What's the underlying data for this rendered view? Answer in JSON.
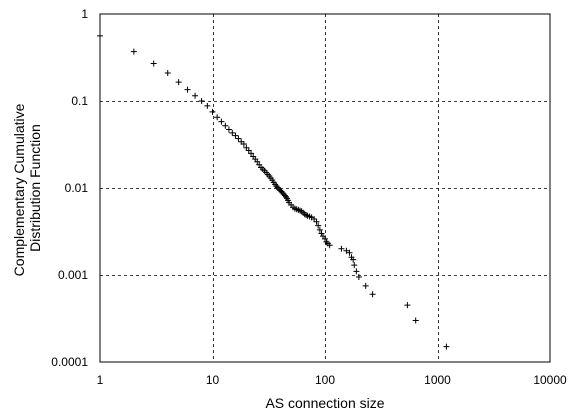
{
  "chart_data": {
    "type": "scatter",
    "title": "",
    "xlabel": "AS connection size",
    "ylabel_lines": [
      "Complementary Cumulative",
      "Distribution Function"
    ],
    "x_scale": "log",
    "y_scale": "log",
    "xlim": [
      1,
      10000
    ],
    "ylim": [
      0.0001,
      1
    ],
    "grid": true,
    "grid_style": "dashed",
    "legend": "none",
    "marker": "+",
    "marker_color": "#000000",
    "xticks": [
      {
        "value": 1,
        "label": "1"
      },
      {
        "value": 10,
        "label": "10"
      },
      {
        "value": 100,
        "label": "100"
      },
      {
        "value": 1000,
        "label": "1000"
      },
      {
        "value": 10000,
        "label": "10000"
      }
    ],
    "yticks": [
      {
        "value": 1,
        "label": "1"
      },
      {
        "value": 0.1,
        "label": "0.1"
      },
      {
        "value": 0.01,
        "label": "0.01"
      },
      {
        "value": 0.001,
        "label": "0.001"
      },
      {
        "value": 0.0001,
        "label": "0.0001"
      }
    ],
    "points": [
      [
        1,
        0.56
      ],
      [
        2,
        0.37
      ],
      [
        3,
        0.27
      ],
      [
        4,
        0.21
      ],
      [
        5,
        0.165
      ],
      [
        6,
        0.135
      ],
      [
        7,
        0.115
      ],
      [
        8,
        0.1
      ],
      [
        9,
        0.088
      ],
      [
        10,
        0.075
      ],
      [
        11,
        0.065
      ],
      [
        12,
        0.058
      ],
      [
        13,
        0.052
      ],
      [
        14,
        0.047
      ],
      [
        15,
        0.043
      ],
      [
        16,
        0.04
      ],
      [
        17,
        0.037
      ],
      [
        18,
        0.034
      ],
      [
        19,
        0.032
      ],
      [
        20,
        0.029
      ],
      [
        21,
        0.027
      ],
      [
        22,
        0.025
      ],
      [
        23,
        0.023
      ],
      [
        24,
        0.0215
      ],
      [
        25,
        0.02
      ],
      [
        26,
        0.0185
      ],
      [
        27,
        0.0172
      ],
      [
        28,
        0.0165
      ],
      [
        29,
        0.0158
      ],
      [
        30,
        0.015
      ],
      [
        31,
        0.0143
      ],
      [
        32,
        0.0137
      ],
      [
        33,
        0.013
      ],
      [
        34,
        0.0123
      ],
      [
        35,
        0.0116
      ],
      [
        36,
        0.011
      ],
      [
        37,
        0.0105
      ],
      [
        38,
        0.0101
      ],
      [
        39,
        0.0097
      ],
      [
        40,
        0.0094
      ],
      [
        41,
        0.0091
      ],
      [
        42,
        0.0088
      ],
      [
        43,
        0.0085
      ],
      [
        44,
        0.0082
      ],
      [
        45,
        0.0079
      ],
      [
        46,
        0.0076
      ],
      [
        47,
        0.0072
      ],
      [
        48,
        0.0068
      ],
      [
        50,
        0.0064
      ],
      [
        52,
        0.006
      ],
      [
        54,
        0.0058
      ],
      [
        56,
        0.0057
      ],
      [
        58,
        0.0056
      ],
      [
        60,
        0.0055
      ],
      [
        62,
        0.0054
      ],
      [
        64,
        0.0052
      ],
      [
        66,
        0.005
      ],
      [
        68,
        0.0049
      ],
      [
        70,
        0.0048
      ],
      [
        73,
        0.0047
      ],
      [
        76,
        0.0046
      ],
      [
        80,
        0.0044
      ],
      [
        84,
        0.0041
      ],
      [
        87,
        0.0037
      ],
      [
        90,
        0.0033
      ],
      [
        93,
        0.003
      ],
      [
        96,
        0.0028
      ],
      [
        100,
        0.0026
      ],
      [
        103,
        0.0024
      ],
      [
        106,
        0.0023
      ],
      [
        110,
        0.0022
      ],
      [
        140,
        0.002
      ],
      [
        155,
        0.0019
      ],
      [
        165,
        0.0018
      ],
      [
        172,
        0.0016
      ],
      [
        178,
        0.0015
      ],
      [
        182,
        0.0013
      ],
      [
        190,
        0.0011
      ],
      [
        200,
        0.00095
      ],
      [
        230,
        0.00075
      ],
      [
        265,
        0.0006
      ],
      [
        540,
        0.00045
      ],
      [
        640,
        0.0003
      ],
      [
        1200,
        0.00015
      ]
    ]
  }
}
